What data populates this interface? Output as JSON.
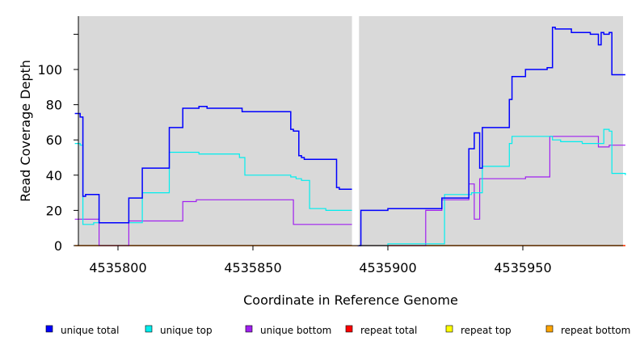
{
  "chart_data": {
    "type": "line",
    "xlabel": "Coordinate in Reference Genome",
    "ylabel": "Read Coverage Depth",
    "xlim": [
      4535784,
      4535988
    ],
    "ylim": [
      0,
      130
    ],
    "x_ticks": [
      {
        "value": 4535800,
        "label": "4535800"
      },
      {
        "value": 4535850,
        "label": "4535850"
      },
      {
        "value": 4535900,
        "label": "4535900"
      },
      {
        "value": 4535950,
        "label": "4535950"
      }
    ],
    "y_ticks": [
      {
        "value": 0,
        "label": "0"
      },
      {
        "value": 20,
        "label": "20"
      },
      {
        "value": 40,
        "label": "40"
      },
      {
        "value": 60,
        "label": "60"
      },
      {
        "value": 80,
        "label": "80"
      },
      {
        "value": 100,
        "label": "100"
      },
      {
        "value": 120,
        "label": ""
      }
    ],
    "gap": [
      4535887,
      4535889
    ],
    "legend_position": "bottom",
    "series": [
      {
        "name": "unique total",
        "color": "#0000ff",
        "x": [
          4535784,
          4535785,
          4535786,
          4535786.3,
          4535787,
          4535787.3,
          4535788,
          4535790,
          4535791,
          4535792,
          4535793,
          4535804,
          4535809,
          4535819,
          4535824,
          4535830,
          4535833,
          4535845,
          4535846,
          4535864,
          4535865,
          4535867,
          4535868,
          4535869,
          4535881,
          4535882,
          4535887,
          4535887,
          4535889,
          4535890,
          4535900,
          4535914,
          4535920,
          4535921,
          4535930,
          4535932,
          4535933,
          4535934,
          4535935,
          4535945,
          4535946,
          4535951,
          4535959,
          4535961,
          4535962,
          4535968,
          4535975,
          4535976,
          4535978,
          4535979,
          4535980,
          4535982,
          4535983,
          4535988
        ],
        "y": [
          75,
          75,
          73,
          73,
          28,
          28,
          29,
          29,
          29,
          29,
          13,
          27,
          44,
          67,
          78,
          79,
          78,
          78,
          76,
          66,
          65,
          51,
          50,
          49,
          33,
          32,
          27,
          12,
          0,
          20,
          21,
          21,
          27,
          27,
          55,
          64,
          64,
          44,
          67,
          83,
          96,
          100,
          101,
          124,
          123,
          121,
          120,
          120,
          114,
          121,
          120,
          121,
          97,
          97
        ]
      },
      {
        "name": "unique top",
        "color": "#00eeee",
        "x": [
          4535784,
          4535785,
          4535786,
          4535787,
          4535791,
          4535793,
          4535795,
          4535803,
          4535804,
          4535806,
          4535809,
          4535819,
          4535830,
          4535844,
          4535845,
          4535847,
          4535864,
          4535866,
          4535868,
          4535869,
          4535871,
          4535877,
          4535881,
          4535882,
          4535889,
          4535900,
          4535920,
          4535921,
          4535923,
          4535931,
          4535935,
          4535939,
          4535945,
          4535946,
          4535960,
          4535961,
          4535964,
          4535968,
          4535972,
          4535976,
          4535978,
          4535980,
          4535982,
          4535983,
          4535988
        ],
        "y": [
          58,
          58,
          57,
          12,
          13,
          13,
          13,
          13,
          13,
          13,
          30,
          53,
          52,
          52,
          50,
          40,
          39,
          38,
          37,
          37,
          21,
          20,
          20,
          20,
          0,
          1,
          1,
          29,
          29,
          30,
          45,
          45,
          58,
          62,
          62,
          60,
          59,
          59,
          58,
          58,
          58,
          66,
          65,
          41,
          40
        ]
      },
      {
        "name": "unique bottom",
        "color": "#a020f0",
        "x": [
          4535784,
          4535793,
          4535804,
          4535819,
          4535824,
          4535829,
          4535830,
          4535864,
          4535865,
          4535880,
          4535881,
          4535889,
          4535914,
          4535920,
          4535921,
          4535930,
          4535932,
          4535934,
          4535935,
          4535950,
          4535951,
          4535959,
          4535960,
          4535974,
          4535976,
          4535978,
          4535980,
          4535982,
          4535983,
          4535988
        ],
        "y": [
          15,
          0,
          14,
          14,
          25,
          26,
          26,
          26,
          12,
          12,
          12,
          0,
          20,
          26,
          26,
          35,
          15,
          38,
          38,
          38,
          39,
          39,
          62,
          62,
          62,
          56,
          56,
          57,
          57,
          57
        ]
      },
      {
        "name": "repeat total",
        "color": "#ff0000",
        "x": [
          4535784,
          4535988
        ],
        "y": [
          0,
          0
        ]
      },
      {
        "name": "repeat top",
        "color": "#ffff00",
        "x": [
          4535784,
          4535988
        ],
        "y": [
          0,
          0
        ]
      },
      {
        "name": "repeat bottom",
        "color": "#ffa500",
        "x": [
          4535784,
          4535988
        ],
        "y": [
          0,
          0
        ]
      }
    ]
  },
  "colors": {
    "panel_background": "#d9d9d9",
    "gap": "#ffffff",
    "axis": "#000000",
    "tick": "#555555"
  }
}
